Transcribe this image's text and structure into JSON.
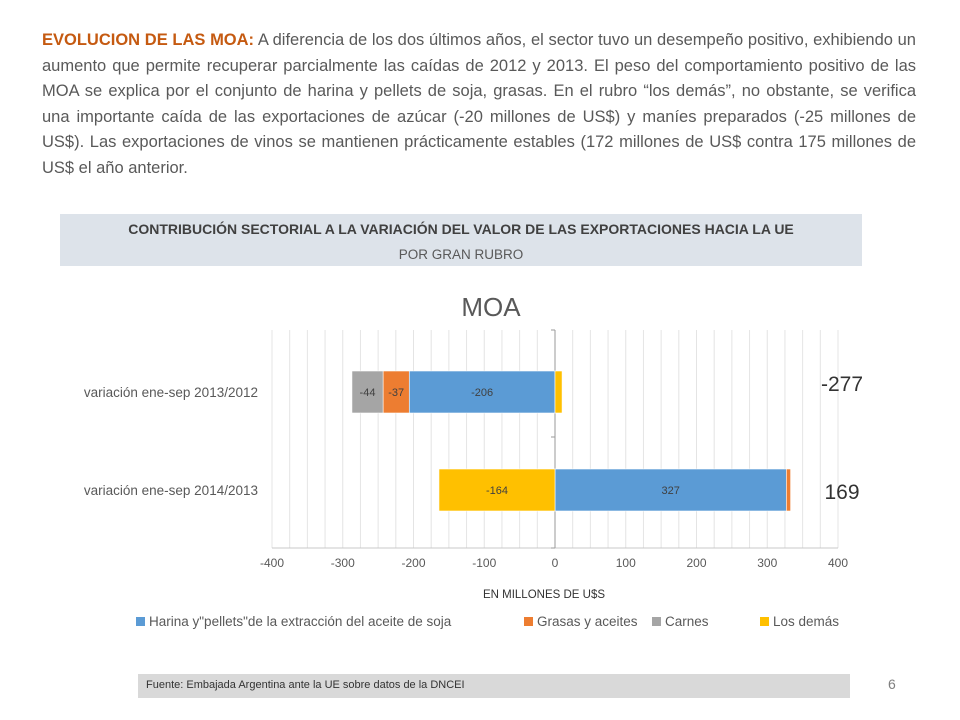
{
  "intro": {
    "lead": "EVOLUCION DE LAS MOA:",
    "body": " A diferencia de los dos últimos años, el sector tuvo un desempeño positivo, exhibiendo un aumento que permite recuperar parcialmente las caídas de 2012  y 2013. El peso del comportamiento positivo de las MOA se explica por el conjunto de harina y pellets de soja, grasas. En el rubro “los demás”, no obstante, se verifica una importante caída de las exportaciones de azúcar  (-20 millones de US$) y maníes preparados (-25 millones de US$). Las exportaciones de vinos se mantienen prácticamente estables (172 millones de US$ contra 175 millones de US$ el año anterior."
  },
  "banner": {
    "title": "CONTRIBUCIÓN SECTORIAL A LA VARIACIÓN DEL VALOR DE LAS EXPORTACIONES HACIA LA UE",
    "subtitle": "POR GRAN RUBRO"
  },
  "chart_data": {
    "type": "bar",
    "orientation": "horizontal",
    "stacked": true,
    "title": "MOA",
    "xlabel": "EN MILLONES DE U$S",
    "ylabel": "",
    "xlim": [
      -400,
      400
    ],
    "xticks": [
      -400,
      -300,
      -200,
      -100,
      0,
      100,
      200,
      300,
      400
    ],
    "grid": true,
    "legend_position": "bottom",
    "categories": [
      "variación ene-sep 2013/2012",
      "variación ene-sep 2014/2013"
    ],
    "series": [
      {
        "name": "Harina y\"pellets\"de la extracción del aceite de soja",
        "color": "#5b9bd5",
        "values": [
          -206,
          327
        ],
        "labels": [
          "-206",
          "327"
        ]
      },
      {
        "name": "Grasas y aceites",
        "color": "#ed7d31",
        "values": [
          -37,
          6
        ],
        "labels": [
          "-37",
          ""
        ]
      },
      {
        "name": "Carnes",
        "color": "#a5a5a5",
        "values": [
          -44,
          0
        ],
        "labels": [
          "-44",
          ""
        ]
      },
      {
        "name": "Los demás",
        "color": "#ffc000",
        "values": [
          10,
          -164
        ],
        "labels": [
          "",
          "-164"
        ]
      }
    ],
    "totals": [
      "-277",
      "169"
    ]
  },
  "footer": {
    "source": "Fuente: Embajada  Argentina ante la UE sobre datos de la DNCEI",
    "page": "6"
  }
}
